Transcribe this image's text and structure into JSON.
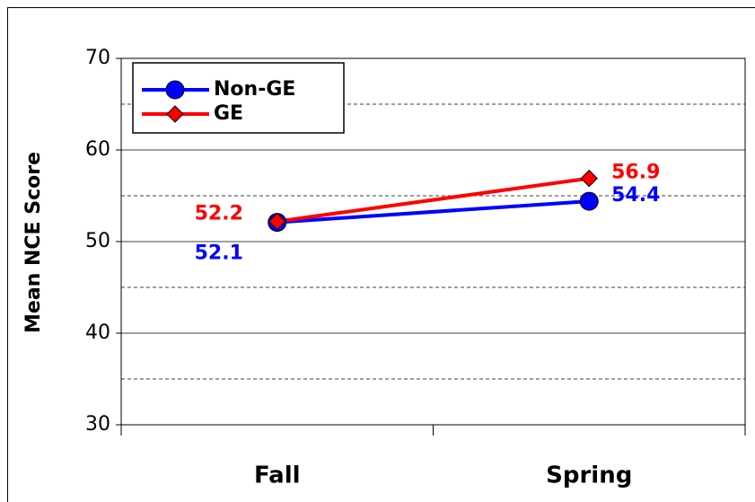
{
  "chart_data": {
    "type": "line",
    "y_label": "Mean NCE Score",
    "categories": [
      "Fall",
      "Spring"
    ],
    "series": [
      {
        "name": "Non-GE",
        "color": "#0000ff",
        "marker": "circle",
        "values": [
          52.1,
          54.4
        ]
      },
      {
        "name": "GE",
        "color": "#ff0000",
        "marker": "diamond",
        "values": [
          52.2,
          56.9
        ]
      }
    ],
    "ylim": [
      30,
      70
    ],
    "yticks": [
      30,
      40,
      50,
      60,
      70
    ],
    "minor_grid": [
      35,
      45,
      55,
      65
    ],
    "grid": true,
    "legend": "top-left"
  }
}
